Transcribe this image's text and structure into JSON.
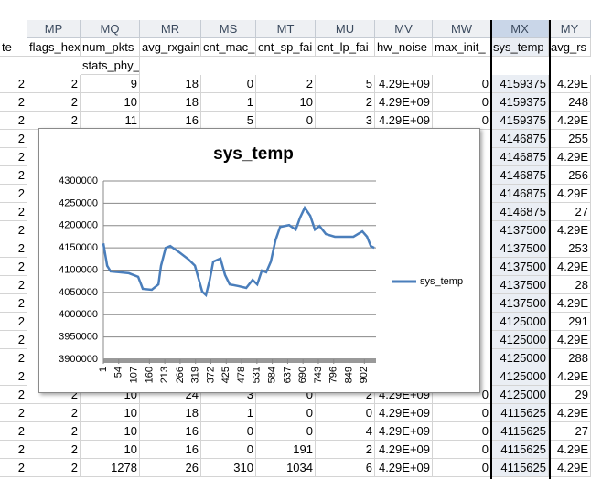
{
  "column_letters": [
    "MP",
    "MQ",
    "MR",
    "MS",
    "MT",
    "MU",
    "MV",
    "MW",
    "MX",
    "MY"
  ],
  "header_row": [
    "te",
    "flags_hex",
    "num_pkts",
    "avg_rxgain",
    "cnt_mac_c",
    "cnt_sp_fai",
    "cnt_lp_fai",
    "hw_noise",
    "max_init_",
    "sys_temp",
    "avg_rs"
  ],
  "header_row2": "stats_phy_rx",
  "rows": [
    {
      "a": "2",
      "MP": "2",
      "MQ": "9",
      "MR": "18",
      "MS": "0",
      "MT": "2",
      "MU": "5",
      "MV": "4.29E+09",
      "MW": "0",
      "MX": "4159375",
      "MY": "4.29E"
    },
    {
      "a": "2",
      "MP": "2",
      "MQ": "10",
      "MR": "18",
      "MS": "1",
      "MT": "10",
      "MU": "2",
      "MV": "4.29E+09",
      "MW": "0",
      "MX": "4159375",
      "MY": "248"
    },
    {
      "a": "2",
      "MP": "2",
      "MQ": "11",
      "MR": "16",
      "MS": "5",
      "MT": "0",
      "MU": "3",
      "MV": "4.29E+09",
      "MW": "0",
      "MX": "4159375",
      "MY": "4.29E"
    },
    {
      "a": "2",
      "MX": "4146875",
      "MY": "255"
    },
    {
      "a": "2",
      "MX": "4146875",
      "MY": "4.29E"
    },
    {
      "a": "2",
      "MX": "4146875",
      "MY": "256"
    },
    {
      "a": "2",
      "MX": "4146875",
      "MY": "4.29E"
    },
    {
      "a": "2",
      "MX": "4146875",
      "MY": "27"
    },
    {
      "a": "2",
      "MX": "4137500",
      "MY": "4.29E"
    },
    {
      "a": "2",
      "MX": "4137500",
      "MY": "253"
    },
    {
      "a": "2",
      "MX": "4137500",
      "MY": "4.29E"
    },
    {
      "a": "2",
      "MX": "4137500",
      "MY": "28"
    },
    {
      "a": "2",
      "MX": "4137500",
      "MY": "4.29E"
    },
    {
      "a": "2",
      "MX": "4125000",
      "MY": "291"
    },
    {
      "a": "2",
      "MX": "4125000",
      "MY": "4.29E"
    },
    {
      "a": "2",
      "MX": "4125000",
      "MY": "288"
    },
    {
      "a": "2",
      "MX": "4125000",
      "MY": "4.29E"
    },
    {
      "a": "2",
      "MP": "2",
      "MQ": "10",
      "MR": "24",
      "MS": "3",
      "MT": "0",
      "MU": "2",
      "MV": "4.29E+09",
      "MW": "0",
      "MX": "4125000",
      "MY": "29"
    },
    {
      "a": "2",
      "MP": "2",
      "MQ": "10",
      "MR": "18",
      "MS": "1",
      "MT": "0",
      "MU": "0",
      "MV": "4.29E+09",
      "MW": "0",
      "MX": "4115625",
      "MY": "4.29E"
    },
    {
      "a": "2",
      "MP": "2",
      "MQ": "10",
      "MR": "16",
      "MS": "0",
      "MT": "0",
      "MU": "4",
      "MV": "4.29E+09",
      "MW": "0",
      "MX": "4115625",
      "MY": "27"
    },
    {
      "a": "2",
      "MP": "2",
      "MQ": "10",
      "MR": "16",
      "MS": "0",
      "MT": "191",
      "MU": "2",
      "MV": "4.29E+09",
      "MW": "0",
      "MX": "4115625",
      "MY": "4.29E"
    },
    {
      "a": "2",
      "MP": "2",
      "MQ": "1278",
      "MR": "26",
      "MS": "310",
      "MT": "1034",
      "MU": "6",
      "MV": "4.29E+09",
      "MW": "0",
      "MX": "4115625",
      "MY": "4.29E"
    }
  ],
  "chart": {
    "type": "line",
    "title": "sys_temp",
    "series": [
      {
        "name": "sys_temp",
        "color": "#4a7ebb",
        "x": [
          1,
          14,
          26,
          58,
          89,
          121,
          137,
          168,
          191,
          200,
          216,
          232,
          263,
          295,
          317,
          326,
          342,
          355,
          368,
          380,
          405,
          421,
          437,
          469,
          494,
          516,
          532,
          548,
          563,
          579,
          595,
          611,
          642,
          665,
          680,
          696,
          715,
          731,
          747,
          769,
          800,
          832,
          864,
          895,
          911,
          924,
          936
        ],
        "values": [
          4160000,
          4110000,
          4097000,
          4095000,
          4093000,
          4085000,
          4058000,
          4056000,
          4068000,
          4110000,
          4150000,
          4154000,
          4140000,
          4124000,
          4110000,
          4089000,
          4052000,
          4044000,
          4078000,
          4119000,
          4126000,
          4089000,
          4068000,
          4064000,
          4060000,
          4078000,
          4068000,
          4099000,
          4095000,
          4119000,
          4167000,
          4197000,
          4201000,
          4191000,
          4218000,
          4240000,
          4222000,
          4191000,
          4199000,
          4181000,
          4175000,
          4175000,
          4175000,
          4187000,
          4175000,
          4154000,
          4150000
        ]
      }
    ],
    "xlim": [
      1,
      942
    ],
    "xticks": [
      1,
      54,
      107,
      160,
      213,
      266,
      319,
      372,
      425,
      478,
      531,
      584,
      637,
      690,
      743,
      796,
      849,
      902
    ],
    "ylim": [
      3900000,
      4300000
    ],
    "yticks": [
      3900000,
      3950000,
      4000000,
      4050000,
      4100000,
      4150000,
      4200000,
      4250000,
      4300000
    ],
    "grid": true
  }
}
